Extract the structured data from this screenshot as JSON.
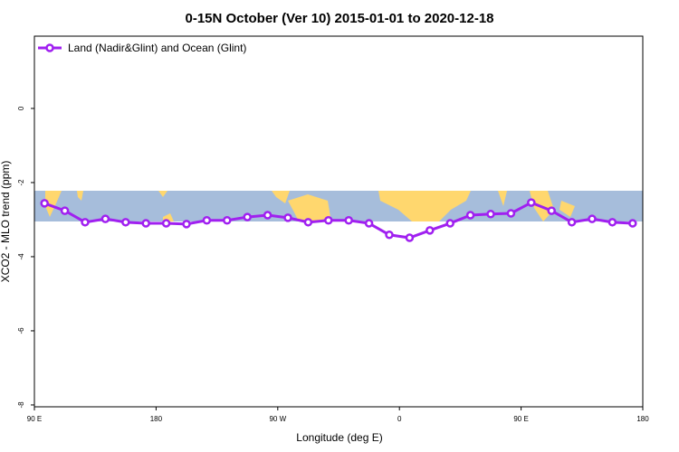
{
  "chart_data": {
    "type": "line",
    "title": "0-15N October (Ver 10)   2015-01-01 to 2020-12-18",
    "x_label": "Longitude (deg E)",
    "y_label": "XCO2 - MLO trend (ppm)",
    "xlim": [
      90,
      540
    ],
    "ylim": [
      -8.05,
      1.95
    ],
    "xticks": [
      {
        "value": 90,
        "label": "90 E"
      },
      180,
      {
        "value": 270,
        "label": "90 W"
      },
      {
        "value": 360,
        "label": "0"
      },
      {
        "value": 450,
        "label": "90 E"
      },
      {
        "value": 540,
        "label": "180"
      }
    ],
    "yticks": [
      0,
      -2,
      -4,
      -6,
      -8
    ],
    "x": [
      97.5,
      112.5,
      127.5,
      142.5,
      157.5,
      172.5,
      187.5,
      202.5,
      217.5,
      232.5,
      247.5,
      262.5,
      277.5,
      292.5,
      307.5,
      322.5,
      337.5,
      352.5,
      367.5,
      382.5,
      397.5,
      412.5,
      427.5,
      442.5,
      457.5,
      472.5,
      487.5,
      502.5,
      517.5,
      532.5
    ],
    "series": [
      {
        "name": "Land (Nadir&Glint) and Ocean (Glint)",
        "color": "#a020f0",
        "values": [
          -2.56,
          -2.76,
          -3.07,
          -2.98,
          -3.07,
          -3.1,
          -3.1,
          -3.12,
          -3.02,
          -3.02,
          -2.93,
          -2.88,
          -2.95,
          -3.07,
          -3.02,
          -3.02,
          -3.1,
          -3.41,
          -3.49,
          -3.29,
          -3.1,
          -2.88,
          -2.85,
          -2.83,
          -2.54,
          -2.76,
          -3.07,
          -2.98,
          -3.07,
          -3.1
        ]
      }
    ],
    "legend": "top-left"
  }
}
